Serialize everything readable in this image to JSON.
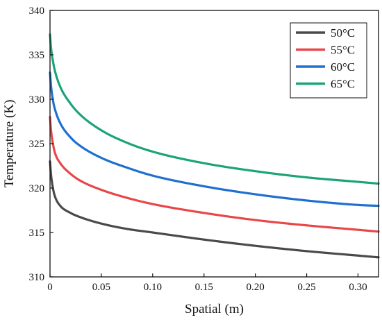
{
  "chart_data": {
    "type": "line",
    "title": "",
    "xlabel": "Spatial (m)",
    "ylabel": "Temperature (K)",
    "xlim": [
      0,
      0.32
    ],
    "ylim": [
      310,
      340
    ],
    "xticks": [
      0,
      0.05,
      0.1,
      0.15,
      0.2,
      0.25,
      0.3
    ],
    "xtick_labels": [
      "0",
      "0.05",
      "0.10",
      "0.15",
      "0.20",
      "0.25",
      "0.30"
    ],
    "yticks": [
      310,
      315,
      320,
      325,
      330,
      335,
      340
    ],
    "ytick_labels": [
      "310",
      "315",
      "320",
      "325",
      "330",
      "335",
      "340"
    ],
    "grid": false,
    "legend_position": "top-right",
    "series": [
      {
        "name": "50°C",
        "color": "#4a4a4a",
        "x": [
          0,
          0.001,
          0.003,
          0.005,
          0.01,
          0.02,
          0.03,
          0.05,
          0.075,
          0.1,
          0.15,
          0.2,
          0.25,
          0.3,
          0.32
        ],
        "y": [
          323.0,
          321.5,
          319.9,
          319.0,
          318.0,
          317.2,
          316.7,
          316.0,
          315.4,
          315.0,
          314.2,
          313.5,
          312.9,
          312.4,
          312.2
        ]
      },
      {
        "name": "55°C",
        "color": "#e8474a",
        "x": [
          0,
          0.001,
          0.003,
          0.005,
          0.01,
          0.02,
          0.03,
          0.05,
          0.075,
          0.1,
          0.15,
          0.2,
          0.25,
          0.3,
          0.32
        ],
        "y": [
          328.0,
          326.5,
          324.9,
          323.9,
          322.8,
          321.6,
          320.8,
          319.8,
          318.9,
          318.2,
          317.2,
          316.4,
          315.8,
          315.3,
          315.1
        ]
      },
      {
        "name": "60°C",
        "color": "#1f6fd1",
        "x": [
          0,
          0.001,
          0.003,
          0.005,
          0.01,
          0.02,
          0.03,
          0.05,
          0.075,
          0.1,
          0.15,
          0.2,
          0.25,
          0.3,
          0.32
        ],
        "y": [
          333.0,
          331.5,
          329.8,
          328.8,
          327.3,
          325.7,
          324.7,
          323.4,
          322.3,
          321.4,
          320.2,
          319.3,
          318.6,
          318.1,
          318.0
        ]
      },
      {
        "name": "65°C",
        "color": "#1ba37a",
        "x": [
          0,
          0.001,
          0.003,
          0.005,
          0.01,
          0.02,
          0.03,
          0.05,
          0.075,
          0.1,
          0.15,
          0.2,
          0.25,
          0.3,
          0.32
        ],
        "y": [
          337.3,
          335.8,
          334.2,
          333.1,
          331.4,
          329.5,
          328.2,
          326.5,
          325.1,
          324.1,
          322.8,
          321.9,
          321.2,
          320.7,
          320.5
        ]
      }
    ]
  }
}
